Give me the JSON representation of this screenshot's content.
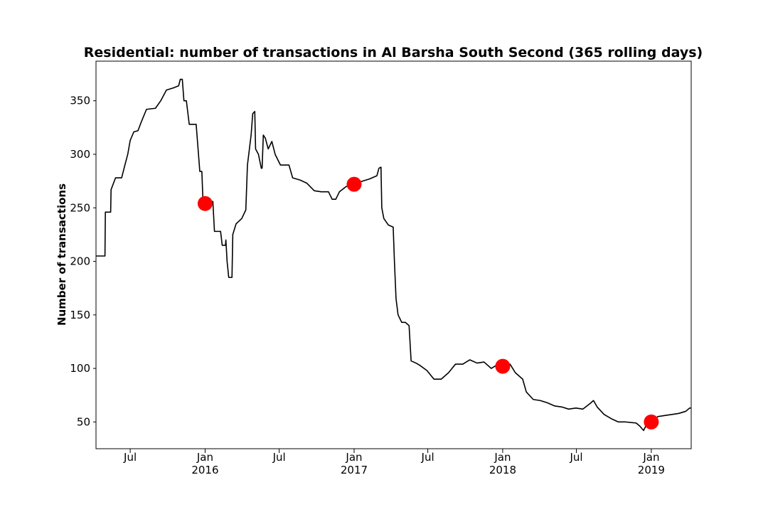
{
  "chart_data": {
    "type": "line",
    "title": "Residential: number of transactions in Al Barsha South Second (365 rolling days)",
    "y_label": "Number of transactions",
    "xlim": [
      "2015-04-08",
      "2019-04-09"
    ],
    "ylim": [
      25,
      387
    ],
    "yticks": [
      50,
      100,
      150,
      200,
      250,
      300,
      350
    ],
    "xticks": [
      {
        "value": "2015-07-01",
        "label": [
          "Jul"
        ]
      },
      {
        "value": "2016-01-01",
        "label": [
          "Jan",
          "2016"
        ]
      },
      {
        "value": "2016-07-01",
        "label": [
          "Jul"
        ]
      },
      {
        "value": "2017-01-01",
        "label": [
          "Jan",
          "2017"
        ]
      },
      {
        "value": "2017-07-01",
        "label": [
          "Jul"
        ]
      },
      {
        "value": "2018-01-01",
        "label": [
          "Jan",
          "2018"
        ]
      },
      {
        "value": "2018-07-01",
        "label": [
          "Jul"
        ]
      },
      {
        "value": "2019-01-01",
        "label": [
          "Jan",
          "2019"
        ]
      }
    ],
    "series": [
      {
        "style": "line",
        "color": "#000000",
        "x": [
          "2015-04-08",
          "2015-04-30",
          "2015-05-01",
          "2015-05-14",
          "2015-05-15",
          "2015-05-26",
          "2015-06-10",
          "2015-06-18",
          "2015-06-25",
          "2015-07-01",
          "2015-07-10",
          "2015-07-20",
          "2015-07-28",
          "2015-08-10",
          "2015-09-01",
          "2015-09-14",
          "2015-09-28",
          "2015-10-15",
          "2015-10-28",
          "2015-11-01",
          "2015-11-06",
          "2015-11-10",
          "2015-11-16",
          "2015-11-23",
          "2015-12-10",
          "2015-12-19",
          "2015-12-24",
          "2015-12-27",
          "2016-01-20",
          "2016-01-24",
          "2016-02-08",
          "2016-02-12",
          "2016-02-20",
          "2016-02-21",
          "2016-02-24",
          "2016-02-28",
          "2016-03-07",
          "2016-03-09",
          "2016-03-17",
          "2016-03-31",
          "2016-04-10",
          "2016-04-14",
          "2016-04-23",
          "2016-04-27",
          "2016-05-02",
          "2016-05-04",
          "2016-05-11",
          "2016-05-18",
          "2016-05-20",
          "2016-05-23",
          "2016-05-28",
          "2016-06-04",
          "2016-06-13",
          "2016-06-21",
          "2016-07-04",
          "2016-07-25",
          "2016-08-03",
          "2016-08-21",
          "2016-09-07",
          "2016-09-25",
          "2016-10-12",
          "2016-10-30",
          "2016-11-08",
          "2016-11-17",
          "2016-11-26",
          "2016-12-13",
          "2017-01-01",
          "2017-01-22",
          "2017-02-08",
          "2017-02-26",
          "2017-03-03",
          "2017-03-08",
          "2017-03-10",
          "2017-03-15",
          "2017-03-26",
          "2017-04-07",
          "2017-04-10",
          "2017-04-14",
          "2017-04-19",
          "2017-04-28",
          "2017-05-07",
          "2017-05-16",
          "2017-05-21",
          "2017-06-02",
          "2017-06-11",
          "2017-06-29",
          "2017-07-16",
          "2017-08-03",
          "2017-08-21",
          "2017-09-07",
          "2017-09-25",
          "2017-10-12",
          "2017-10-30",
          "2017-11-16",
          "2017-12-04",
          "2017-12-21",
          "2018-01-01",
          "2018-01-19",
          "2018-02-01",
          "2018-02-19",
          "2018-02-28",
          "2018-03-17",
          "2018-04-03",
          "2018-04-20",
          "2018-05-08",
          "2018-05-26",
          "2018-06-12",
          "2018-06-30",
          "2018-07-17",
          "2018-08-03",
          "2018-08-12",
          "2018-08-21",
          "2018-09-07",
          "2018-09-25",
          "2018-10-12",
          "2018-10-30",
          "2018-11-25",
          "2018-12-04",
          "2018-12-13",
          "2018-12-21",
          "2019-01-01",
          "2019-01-17",
          "2019-02-03",
          "2019-02-21",
          "2019-03-10",
          "2019-03-27",
          "2019-04-05",
          "2019-04-08"
        ],
        "values": [
          205,
          205,
          246,
          246,
          267,
          278,
          278,
          290,
          300,
          313,
          321,
          322,
          330,
          342,
          343,
          350,
          360,
          362,
          364,
          370,
          370,
          350,
          350,
          328,
          328,
          284,
          284,
          254,
          256,
          228,
          228,
          215,
          215,
          220,
          200,
          185,
          185,
          225,
          235,
          240,
          248,
          290,
          318,
          338,
          340,
          305,
          300,
          287,
          287,
          318,
          315,
          305,
          312,
          300,
          290,
          290,
          278,
          276,
          273,
          266,
          265,
          265,
          258,
          258,
          265,
          270,
          272,
          275,
          277,
          280,
          287,
          288,
          250,
          240,
          234,
          232,
          200,
          165,
          150,
          143,
          143,
          140,
          107,
          105,
          103,
          98,
          90,
          90,
          96,
          104,
          104,
          108,
          105,
          106,
          100,
          104,
          102,
          104,
          96,
          90,
          78,
          71,
          70,
          68,
          65,
          64,
          62,
          63,
          62,
          67,
          70,
          64,
          57,
          53,
          50,
          50,
          49,
          46,
          42,
          48,
          50,
          55,
          56,
          57,
          58,
          60,
          63,
          63
        ]
      },
      {
        "style": "markers",
        "color": "#ff0000",
        "x": [
          "2016-01-01",
          "2017-01-01",
          "2018-01-01",
          "2019-01-01"
        ],
        "values": [
          254,
          272,
          102,
          50
        ]
      }
    ]
  }
}
